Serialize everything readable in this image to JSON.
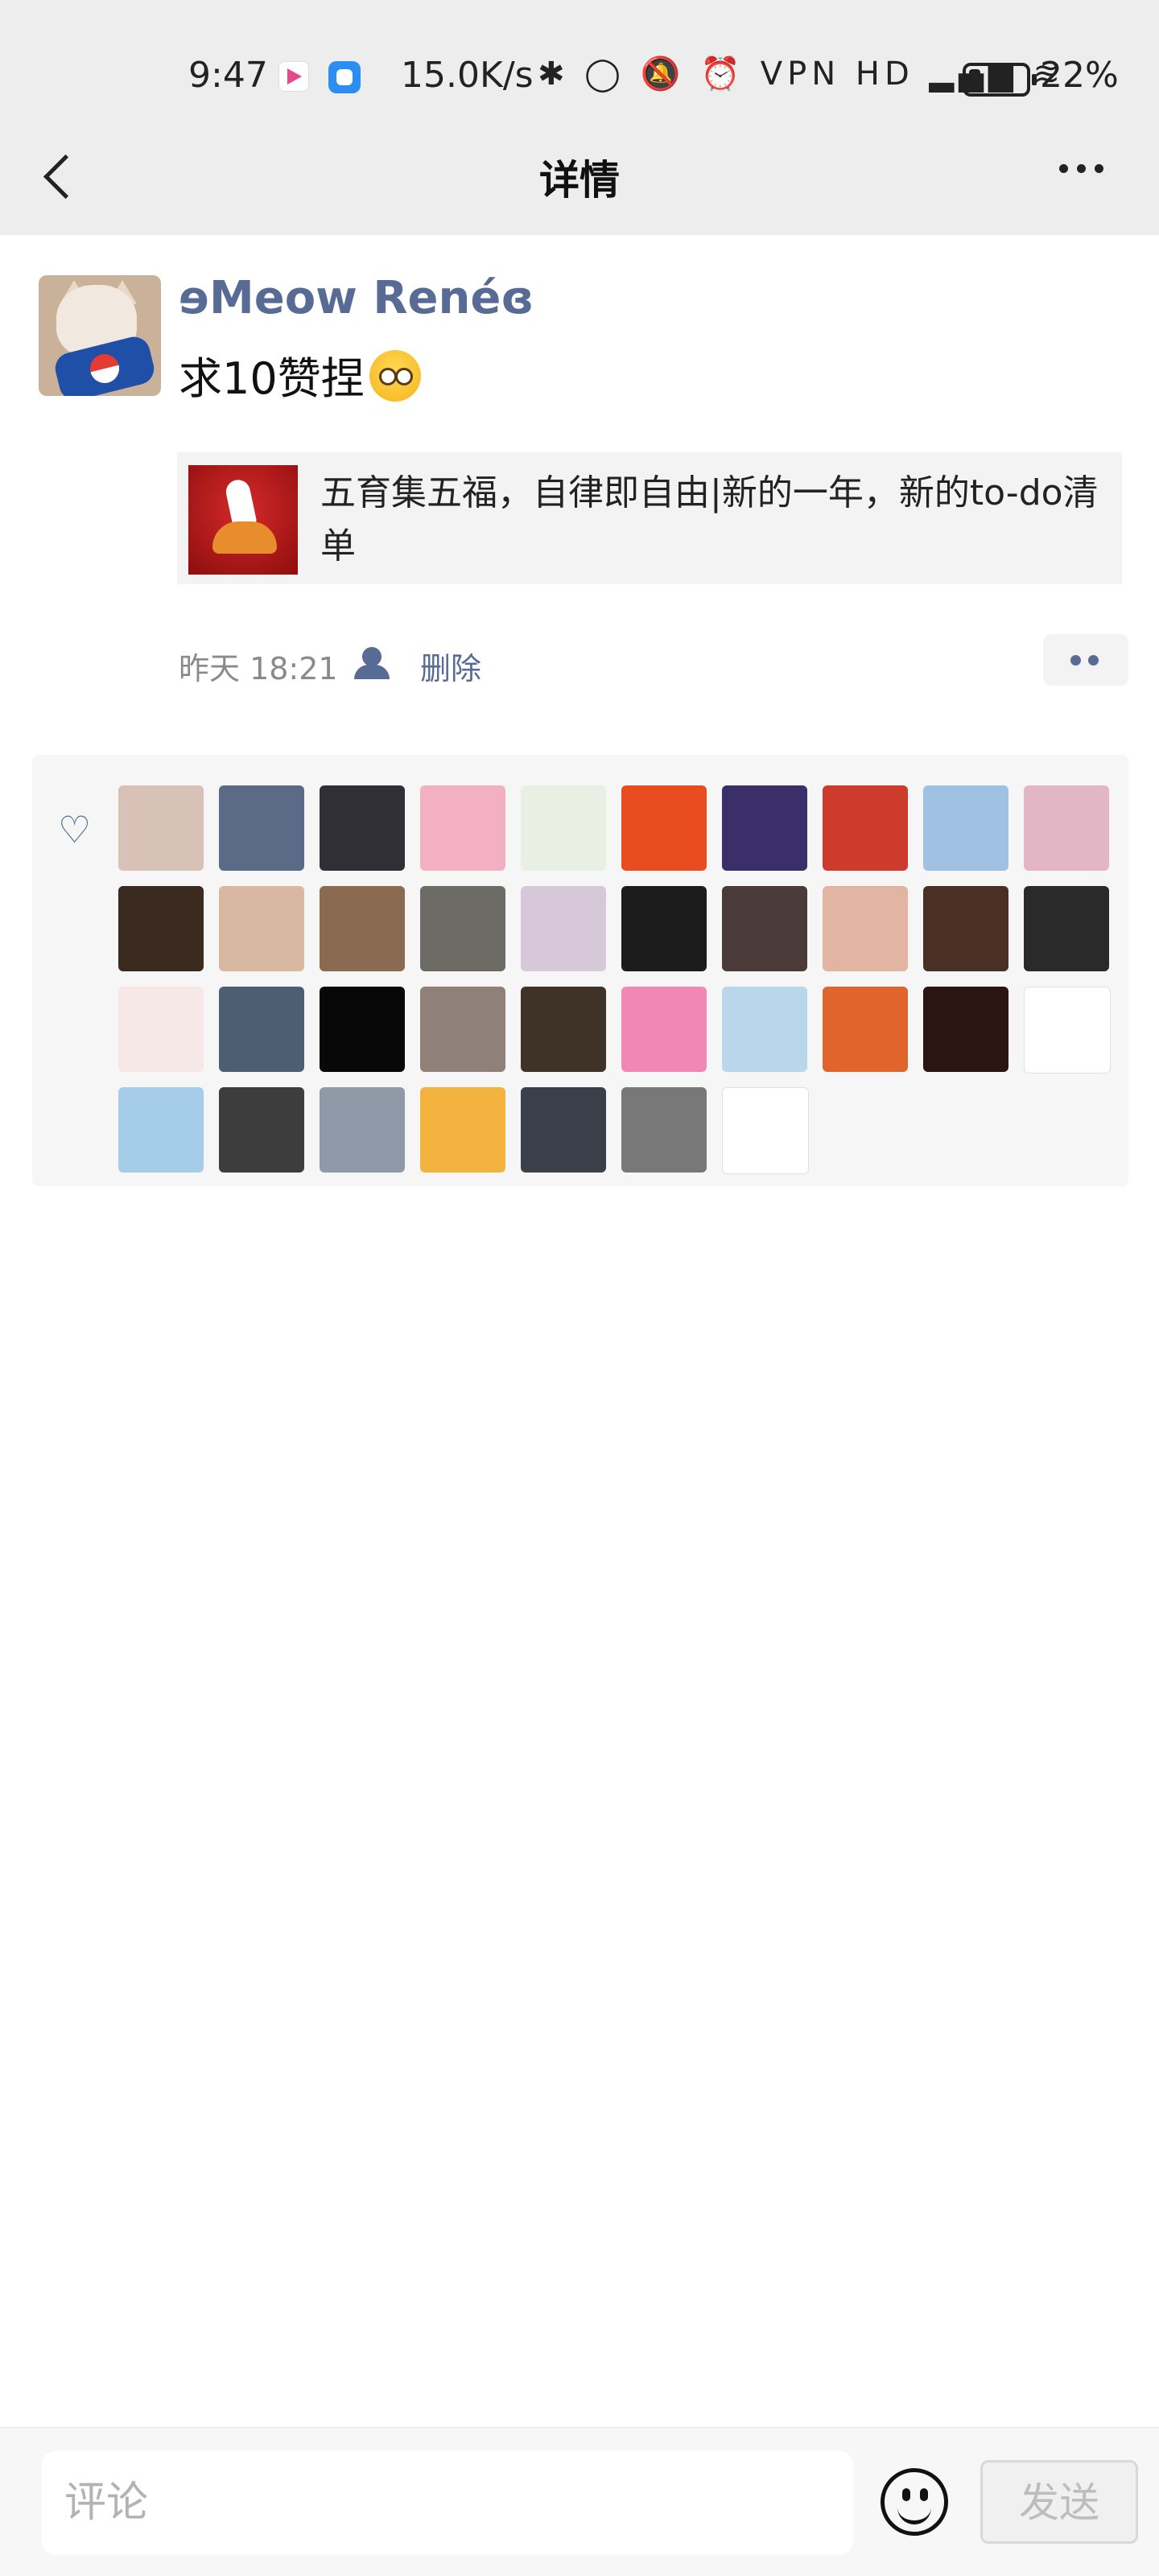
{
  "status_bar": {
    "time": "9:47",
    "speed": "15.0K/s",
    "icons_text": "✱ ◯ 🔕 ⏰ VPN HD ▂▄▆ ≋",
    "battery_pct": "22%"
  },
  "header": {
    "title": "详情"
  },
  "post": {
    "username": "ɘMeow Renéɞ",
    "text": "求10赞捏",
    "share": {
      "text": "五育集五福，自律即自由|新的一年，新的to-do清单"
    },
    "time": "昨天 18:21",
    "delete_label": "删除"
  },
  "likes": {
    "avatars": [
      {
        "name": "avatar-1",
        "color": "#d8c2b7"
      },
      {
        "name": "avatar-2",
        "color": "#5b6a87"
      },
      {
        "name": "avatar-3",
        "color": "#2f2f35"
      },
      {
        "name": "avatar-4",
        "color": "#f3b0c2"
      },
      {
        "name": "avatar-5",
        "color": "#e9efe3"
      },
      {
        "name": "avatar-6",
        "color": "#e84c1f"
      },
      {
        "name": "avatar-7",
        "color": "#3b2f6a"
      },
      {
        "name": "avatar-8",
        "color": "#cc3b2b"
      },
      {
        "name": "avatar-9",
        "color": "#9fc1e3"
      },
      {
        "name": "avatar-10",
        "color": "#e2b6c4"
      },
      {
        "name": "avatar-11",
        "color": "#3a2a1f"
      },
      {
        "name": "avatar-12",
        "color": "#d8b8a0"
      },
      {
        "name": "avatar-13",
        "color": "#8a6a50"
      },
      {
        "name": "avatar-14",
        "color": "#6d6b65"
      },
      {
        "name": "avatar-15",
        "color": "#d6c8d8"
      },
      {
        "name": "avatar-16",
        "color": "#1c1c1c"
      },
      {
        "name": "avatar-17",
        "color": "#4a3a3a"
      },
      {
        "name": "avatar-18",
        "color": "#e2b5a2"
      },
      {
        "name": "avatar-19",
        "color": "#4a3024"
      },
      {
        "name": "avatar-20",
        "color": "#2a2a2a"
      },
      {
        "name": "avatar-21",
        "color": "#f5e8e6"
      },
      {
        "name": "avatar-22",
        "color": "#4d5e72"
      },
      {
        "name": "avatar-23",
        "color": "#080808"
      },
      {
        "name": "avatar-24",
        "color": "#8f8178"
      },
      {
        "name": "avatar-25",
        "color": "#3e3326"
      },
      {
        "name": "avatar-26",
        "color": "#f087b4"
      },
      {
        "name": "avatar-27",
        "color": "#b9d6ea"
      },
      {
        "name": "avatar-28",
        "color": "#e0652c"
      },
      {
        "name": "avatar-29",
        "color": "#2a1512"
      },
      {
        "name": "avatar-30",
        "color": "#ffffff"
      },
      {
        "name": "avatar-31",
        "color": "#a5cde9"
      },
      {
        "name": "avatar-32",
        "color": "#3d3d3d"
      },
      {
        "name": "avatar-33",
        "color": "#8f9aa8"
      },
      {
        "name": "avatar-34",
        "color": "#f4b33f"
      },
      {
        "name": "avatar-35",
        "color": "#3a3f4a"
      },
      {
        "name": "avatar-36",
        "color": "#787878"
      },
      {
        "name": "avatar-37",
        "color": "#ffffff"
      }
    ]
  },
  "comment_bar": {
    "placeholder": "评论",
    "send_label": "发送"
  },
  "colors": {
    "link": "#586b95",
    "bg_panel": "#f6f6f6"
  }
}
